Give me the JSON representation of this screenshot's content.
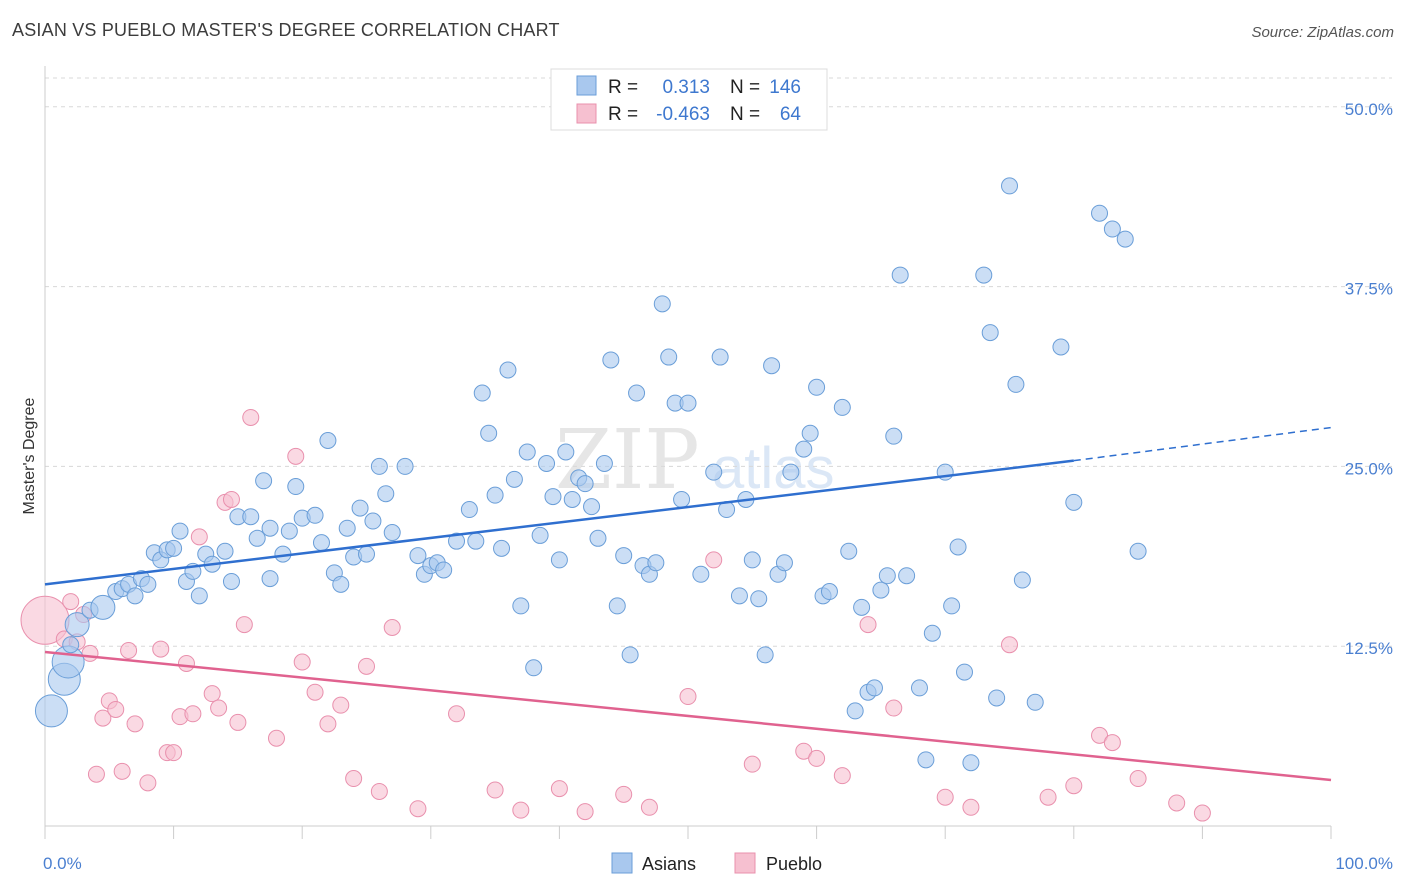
{
  "header": {
    "title": "ASIAN VS PUEBLO MASTER'S DEGREE CORRELATION CHART",
    "source": "Source: ZipAtlas.com"
  },
  "watermark": {
    "zip": "ZIP",
    "atlas": "atlas"
  },
  "legend": {
    "rows": [
      {
        "r_label": "R =",
        "r_value": "0.313",
        "n_label": "N =",
        "n_value": "146",
        "color": "#a9c8ee"
      },
      {
        "r_label": "R =",
        "r_value": "-0.463",
        "n_label": "N =",
        "n_value": "64",
        "color": "#f6b6c8"
      }
    ]
  },
  "bottom_legend": {
    "asian": "Asians",
    "pueblo": "Pueblo"
  },
  "colors": {
    "asian_fill": "#a9c8ee",
    "asian_stroke": "#6a9ed8",
    "asian_line": "#2f6fcf",
    "pueblo_fill": "#f6c0d0",
    "pueblo_stroke": "#e990ad",
    "pueblo_line": "#e0628f",
    "grid": "#d8d8d8",
    "tick_text": "#4a7fd0"
  },
  "chart_data": {
    "type": "scatter",
    "title": "ASIAN VS PUEBLO MASTER'S DEGREE CORRELATION CHART",
    "xlabel": "",
    "ylabel": "Master's Degree",
    "xlim": [
      0,
      100
    ],
    "ylim": [
      0,
      52
    ],
    "x_tick_labels": [
      "0.0%",
      "100.0%"
    ],
    "y_ticks": [
      12.5,
      25.0,
      37.5,
      50.0
    ],
    "y_tick_labels": [
      "12.5%",
      "25.0%",
      "37.5%",
      "50.0%"
    ],
    "grid": true,
    "legend_position": "top-center",
    "series": [
      {
        "name": "Asians",
        "r": 0.313,
        "n": 146,
        "trend": {
          "x": [
            0,
            80
          ],
          "y": [
            16.8,
            25.4
          ],
          "dashed_to": [
            100,
            27.7
          ]
        },
        "points": [
          [
            0.5,
            8,
            2
          ],
          [
            1.5,
            10.2,
            2
          ],
          [
            1.8,
            11.4,
            2
          ],
          [
            2,
            12.6,
            1
          ],
          [
            2.5,
            14,
            1.5
          ],
          [
            3.5,
            15,
            1
          ],
          [
            4.5,
            15.2,
            1.5
          ],
          [
            5.5,
            16.3,
            1
          ],
          [
            6,
            16.5,
            1
          ],
          [
            6.5,
            16.8,
            1
          ],
          [
            7,
            16,
            1
          ],
          [
            7.5,
            17.2,
            1
          ],
          [
            8,
            16.8,
            1
          ],
          [
            8.5,
            19,
            1
          ],
          [
            9,
            18.5,
            1
          ],
          [
            9.5,
            19.2,
            1
          ],
          [
            10,
            19.3,
            1
          ],
          [
            10.5,
            20.5,
            1
          ],
          [
            11,
            17,
            1
          ],
          [
            11.5,
            17.7,
            1
          ],
          [
            12,
            16,
            1
          ],
          [
            12.5,
            18.9,
            1
          ],
          [
            13,
            18.2,
            1
          ],
          [
            14,
            19.1,
            1
          ],
          [
            14.5,
            17,
            1
          ],
          [
            15,
            21.5,
            1
          ],
          [
            16,
            21.5,
            1
          ],
          [
            16.5,
            20,
            1
          ],
          [
            17,
            24,
            1
          ],
          [
            17.5,
            20.7,
            1
          ],
          [
            17.5,
            17.2,
            1
          ],
          [
            18.5,
            18.9,
            1
          ],
          [
            19,
            20.5,
            1
          ],
          [
            19.5,
            23.6,
            1
          ],
          [
            20,
            21.4,
            1
          ],
          [
            21,
            21.6,
            1
          ],
          [
            21.5,
            19.7,
            1
          ],
          [
            22,
            26.8,
            1
          ],
          [
            22.5,
            17.6,
            1
          ],
          [
            23,
            16.8,
            1
          ],
          [
            23.5,
            20.7,
            1
          ],
          [
            24,
            18.7,
            1
          ],
          [
            24.5,
            22.1,
            1
          ],
          [
            25,
            18.9,
            1
          ],
          [
            25.5,
            21.2,
            1
          ],
          [
            26,
            25,
            1
          ],
          [
            26.5,
            23.1,
            1
          ],
          [
            27,
            20.4,
            1
          ],
          [
            28,
            25,
            1
          ],
          [
            29,
            18.8,
            1
          ],
          [
            29.5,
            17.5,
            1
          ],
          [
            30,
            18.1,
            1
          ],
          [
            30.5,
            18.3,
            1
          ],
          [
            31,
            17.8,
            1
          ],
          [
            32,
            19.8,
            1
          ],
          [
            33,
            22,
            1
          ],
          [
            33.5,
            19.8,
            1
          ],
          [
            34,
            30.1,
            1
          ],
          [
            34.5,
            27.3,
            1
          ],
          [
            35,
            23,
            1
          ],
          [
            35.5,
            19.3,
            1
          ],
          [
            36,
            31.7,
            1
          ],
          [
            36.5,
            24.1,
            1
          ],
          [
            37,
            15.3,
            1
          ],
          [
            37.5,
            26,
            1
          ],
          [
            38,
            11,
            1
          ],
          [
            38.5,
            20.2,
            1
          ],
          [
            39,
            25.2,
            1
          ],
          [
            39.5,
            22.9,
            1
          ],
          [
            40,
            18.5,
            1
          ],
          [
            40.5,
            26,
            1
          ],
          [
            41,
            22.7,
            1
          ],
          [
            41.5,
            24.2,
            1
          ],
          [
            42,
            23.8,
            1
          ],
          [
            42.5,
            22.2,
            1
          ],
          [
            43,
            20,
            1
          ],
          [
            43.5,
            25.2,
            1
          ],
          [
            44,
            32.4,
            1
          ],
          [
            44.5,
            15.3,
            1
          ],
          [
            45,
            18.8,
            1
          ],
          [
            45.5,
            11.9,
            1
          ],
          [
            46,
            30.1,
            1
          ],
          [
            46.5,
            18.1,
            1
          ],
          [
            47,
            17.5,
            1
          ],
          [
            47.5,
            18.3,
            1
          ],
          [
            48,
            36.3,
            1
          ],
          [
            48.5,
            32.6,
            1
          ],
          [
            49,
            29.4,
            1
          ],
          [
            49.5,
            22.7,
            1
          ],
          [
            50,
            29.4,
            1
          ],
          [
            51,
            17.5,
            1
          ],
          [
            52,
            24.6,
            1
          ],
          [
            52.5,
            32.6,
            1
          ],
          [
            53,
            22,
            1
          ],
          [
            54,
            16,
            1
          ],
          [
            54.5,
            22.7,
            1
          ],
          [
            55,
            18.5,
            1
          ],
          [
            55.5,
            15.8,
            1
          ],
          [
            56,
            11.9,
            1
          ],
          [
            56.5,
            32,
            1
          ],
          [
            57,
            17.5,
            1
          ],
          [
            57.5,
            18.3,
            1
          ],
          [
            58,
            24.6,
            1
          ],
          [
            59,
            26.2,
            1
          ],
          [
            59.5,
            27.3,
            1
          ],
          [
            60,
            30.5,
            1
          ],
          [
            60.5,
            16,
            1
          ],
          [
            61,
            16.3,
            1
          ],
          [
            62,
            29.1,
            1
          ],
          [
            62.5,
            19.1,
            1
          ],
          [
            63,
            8,
            1
          ],
          [
            63.5,
            15.2,
            1
          ],
          [
            64,
            9.3,
            1
          ],
          [
            64.5,
            9.6,
            1
          ],
          [
            65,
            16.4,
            1
          ],
          [
            65.5,
            17.4,
            1
          ],
          [
            66,
            27.1,
            1
          ],
          [
            66.5,
            38.3,
            1
          ],
          [
            67,
            17.4,
            1
          ],
          [
            68,
            9.6,
            1
          ],
          [
            68.5,
            4.6,
            1
          ],
          [
            69,
            13.4,
            1
          ],
          [
            70,
            24.6,
            1
          ],
          [
            70.5,
            15.3,
            1
          ],
          [
            71,
            19.4,
            1
          ],
          [
            71.5,
            10.7,
            1
          ],
          [
            72,
            4.4,
            1
          ],
          [
            73,
            38.3,
            1
          ],
          [
            73.5,
            34.3,
            1
          ],
          [
            74,
            8.9,
            1
          ],
          [
            75,
            44.5,
            1
          ],
          [
            75.5,
            30.7,
            1
          ],
          [
            76,
            17.1,
            1
          ],
          [
            77,
            8.6,
            1
          ],
          [
            79,
            33.3,
            1
          ],
          [
            80,
            22.5,
            1
          ],
          [
            82,
            42.6,
            1
          ],
          [
            83,
            41.5,
            1
          ],
          [
            84,
            40.8,
            1
          ],
          [
            85,
            19.1,
            1
          ]
        ]
      },
      {
        "name": "Pueblo",
        "r": -0.463,
        "n": 64,
        "trend": {
          "x": [
            0,
            100
          ],
          "y": [
            12.1,
            3.2
          ]
        },
        "points": [
          [
            0,
            14.3,
            3
          ],
          [
            1.5,
            13,
            1
          ],
          [
            2,
            15.6,
            1
          ],
          [
            2.5,
            12.8,
            1
          ],
          [
            3,
            14.7,
            1
          ],
          [
            3.5,
            12,
            1
          ],
          [
            4,
            3.6,
            1
          ],
          [
            4.5,
            7.5,
            1
          ],
          [
            5,
            8.7,
            1
          ],
          [
            5.5,
            8.1,
            1
          ],
          [
            6,
            3.8,
            1
          ],
          [
            6.5,
            12.2,
            1
          ],
          [
            7,
            7.1,
            1
          ],
          [
            8,
            3,
            1
          ],
          [
            9,
            12.3,
            1
          ],
          [
            9.5,
            5.1,
            1
          ],
          [
            10,
            5.1,
            1
          ],
          [
            10.5,
            7.6,
            1
          ],
          [
            11,
            11.3,
            1
          ],
          [
            11.5,
            7.8,
            1
          ],
          [
            12,
            20.1,
            1
          ],
          [
            13,
            9.2,
            1
          ],
          [
            13.5,
            8.2,
            1
          ],
          [
            14,
            22.5,
            1
          ],
          [
            14.5,
            22.7,
            1
          ],
          [
            15,
            7.2,
            1
          ],
          [
            15.5,
            14,
            1
          ],
          [
            16,
            28.4,
            1
          ],
          [
            18,
            6.1,
            1
          ],
          [
            19.5,
            25.7,
            1
          ],
          [
            20,
            11.4,
            1
          ],
          [
            21,
            9.3,
            1
          ],
          [
            22,
            7.1,
            1
          ],
          [
            23,
            8.4,
            1
          ],
          [
            24,
            3.3,
            1
          ],
          [
            25,
            11.1,
            1
          ],
          [
            26,
            2.4,
            1
          ],
          [
            27,
            13.8,
            1
          ],
          [
            29,
            1.2,
            1
          ],
          [
            32,
            7.8,
            1
          ],
          [
            35,
            2.5,
            1
          ],
          [
            37,
            1.1,
            1
          ],
          [
            40,
            2.6,
            1
          ],
          [
            42,
            1,
            1
          ],
          [
            45,
            2.2,
            1
          ],
          [
            47,
            1.3,
            1
          ],
          [
            50,
            9,
            1
          ],
          [
            52,
            18.5,
            1
          ],
          [
            55,
            4.3,
            1
          ],
          [
            59,
            5.2,
            1
          ],
          [
            60,
            4.7,
            1
          ],
          [
            62,
            3.5,
            1
          ],
          [
            64,
            14,
            1
          ],
          [
            66,
            8.2,
            1
          ],
          [
            70,
            2,
            1
          ],
          [
            72,
            1.3,
            1
          ],
          [
            75,
            12.6,
            1
          ],
          [
            78,
            2,
            1
          ],
          [
            80,
            2.8,
            1
          ],
          [
            82,
            6.3,
            1
          ],
          [
            83,
            5.8,
            1
          ],
          [
            85,
            3.3,
            1
          ],
          [
            88,
            1.6,
            1
          ],
          [
            90,
            0.9,
            1
          ]
        ]
      }
    ]
  }
}
